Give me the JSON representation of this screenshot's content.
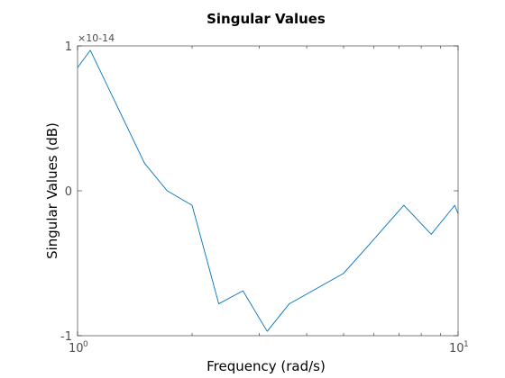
{
  "chart_data": {
    "type": "line",
    "title": "Singular Values",
    "xlabel": "Frequency (rad/s)",
    "ylabel": "Singular Values (dB)",
    "xscale": "log",
    "xlim": [
      1,
      10
    ],
    "ylim": [
      -1,
      1
    ],
    "y_multiplier": "×10-14",
    "x_ticks": [
      {
        "value": 1,
        "base": "10",
        "exp": "0"
      },
      {
        "value": 10,
        "base": "10",
        "exp": "1"
      }
    ],
    "y_ticks": [
      {
        "value": -1,
        "label": "-1"
      },
      {
        "value": 0,
        "label": "0"
      },
      {
        "value": 1,
        "label": "1"
      }
    ],
    "grid": false,
    "series": [
      {
        "color": "#0072bd",
        "x": [
          1.0,
          1.08,
          1.5,
          1.72,
          2.0,
          2.35,
          2.72,
          3.15,
          3.6,
          5.0,
          5.8,
          7.2,
          8.5,
          9.8,
          10.0
        ],
        "y": [
          0.85,
          0.97,
          0.19,
          0.0,
          -0.1,
          -0.78,
          -0.69,
          -0.97,
          -0.78,
          -0.57,
          -0.38,
          -0.1,
          -0.3,
          -0.1,
          -0.16
        ]
      }
    ]
  }
}
